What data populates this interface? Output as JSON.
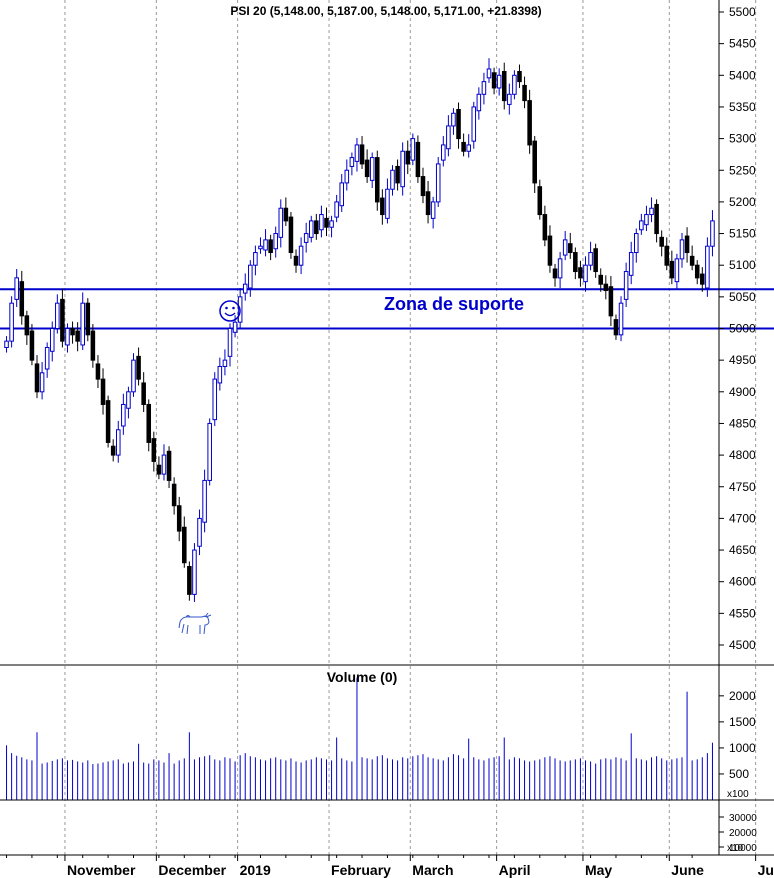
{
  "chart_data": {
    "type": "candlestick",
    "title": "PSI 20 (5,148.00, 5,187.00, 5,148.00, 5,171.00, +21.8398)",
    "ylim": [
      4470,
      5520
    ],
    "y_ticks": [
      4500,
      4550,
      4600,
      4650,
      4700,
      4750,
      4800,
      4850,
      4900,
      4950,
      5000,
      5050,
      5100,
      5150,
      5200,
      5250,
      5300,
      5350,
      5400,
      5450,
      5500
    ],
    "y_tick_labels": [
      "4500",
      "4550",
      "4600",
      "4650",
      "4700",
      "4750",
      "4800",
      "4850",
      "4900",
      "4950",
      "5000",
      "5050",
      "5100",
      "5150",
      "5200",
      "5250",
      "5300",
      "5350",
      "5400",
      "5450",
      "5500"
    ],
    "months": [
      {
        "label": "November",
        "day_index": 12
      },
      {
        "label": "December",
        "day_index": 30
      },
      {
        "label": "2019",
        "day_index": 46
      },
      {
        "label": "February",
        "day_index": 64
      },
      {
        "label": "March",
        "day_index": 80
      },
      {
        "label": "April",
        "day_index": 97
      },
      {
        "label": "May",
        "day_index": 114
      },
      {
        "label": "June",
        "day_index": 131
      },
      {
        "label": "July",
        "day_index": 148
      }
    ],
    "support_levels": [
      5062,
      5000
    ],
    "support_label": "Zona de suporte",
    "support_color": "#0000cc",
    "up_color": "#0000cc",
    "down_color": "#000000",
    "volume_title": "Volume (0)",
    "volume_ylim": [
      0,
      2400
    ],
    "volume_ticks": [
      500,
      1000,
      1500,
      2000
    ],
    "volume_tick_labels": [
      "500",
      "1000",
      "1500",
      "2000"
    ],
    "volume_multiplier_label": "x100",
    "lower_ticks": [
      10000,
      20000,
      30000
    ],
    "lower_tick_labels": [
      "10000",
      "20000",
      "30000"
    ],
    "lower_multiplier_label": "x10",
    "bull_icon": "bull-icon",
    "smiley_icon": "smiley-icon",
    "closes": [
      4980,
      5040,
      5080,
      5020,
      4990,
      4950,
      4900,
      4930,
      4970,
      5000,
      5040,
      4980,
      5000,
      4990,
      4980,
      5040,
      4990,
      4950,
      4920,
      4880,
      4820,
      4800,
      4840,
      4880,
      4900,
      4950,
      4920,
      4880,
      4820,
      4790,
      4770,
      4800,
      4760,
      4720,
      4680,
      4630,
      4580,
      4650,
      4700,
      4760,
      4850,
      4920,
      4940,
      4950,
      5000,
      5010,
      5050,
      5070,
      5100,
      5120,
      5130,
      5140,
      5120,
      5150,
      5190,
      5170,
      5120,
      5100,
      5130,
      5150,
      5170,
      5150,
      5180,
      5160,
      5170,
      5200,
      5230,
      5250,
      5270,
      5290,
      5260,
      5240,
      5270,
      5200,
      5180,
      5220,
      5250,
      5230,
      5280,
      5260,
      5300,
      5240,
      5210,
      5180,
      5200,
      5260,
      5290,
      5320,
      5340,
      5300,
      5280,
      5290,
      5350,
      5370,
      5390,
      5410,
      5380,
      5400,
      5360,
      5370,
      5400,
      5390,
      5360,
      5290,
      5230,
      5180,
      5140,
      5100,
      5080,
      5110,
      5140,
      5120,
      5090,
      5080,
      5100,
      5120,
      5090,
      5070,
      5060,
      5020,
      4990,
      5040,
      5090,
      5120,
      5150,
      5170,
      5180,
      5190,
      5150,
      5130,
      5100,
      5080,
      5110,
      5140,
      5120,
      5100,
      5080,
      5070,
      5130,
      5170
    ],
    "volumes": [
      1050,
      900,
      850,
      820,
      780,
      760,
      1300,
      700,
      720,
      750,
      780,
      800,
      760,
      770,
      740,
      720,
      760,
      690,
      700,
      720,
      740,
      760,
      780,
      700,
      720,
      740,
      1080,
      720,
      700,
      780,
      760,
      720,
      900,
      700,
      760,
      800,
      1300,
      780,
      820,
      840,
      860,
      780,
      760,
      820,
      800,
      740,
      860,
      900,
      840,
      820,
      780,
      760,
      800,
      820,
      780,
      760,
      800,
      740,
      720,
      760,
      780,
      820,
      800,
      780,
      760,
      1200,
      800,
      760,
      740,
      2350,
      820,
      800,
      780,
      840,
      860,
      800,
      780,
      760,
      820,
      800,
      840,
      860,
      880,
      820,
      800,
      780,
      760,
      820,
      880,
      860,
      800,
      1180,
      820,
      780,
      760,
      800,
      820,
      840,
      1200,
      780,
      820,
      800,
      760,
      740,
      760,
      780,
      820,
      840,
      800,
      760,
      740,
      760,
      780,
      800,
      760,
      740,
      700,
      780,
      800,
      780,
      820,
      800,
      760,
      1280,
      800,
      780,
      760,
      820,
      840,
      800,
      760,
      780,
      800,
      820,
      2080,
      760,
      780,
      820,
      900,
      1100
    ]
  }
}
